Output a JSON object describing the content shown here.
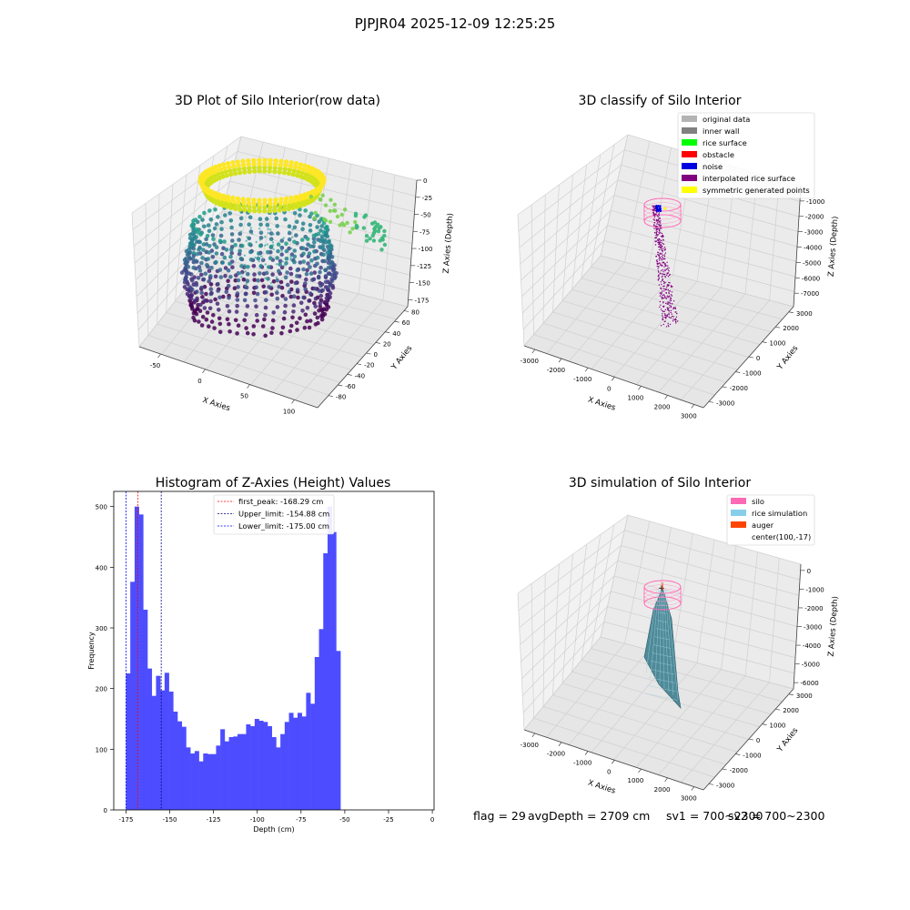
{
  "figure": {
    "suptitle": "PJPJR04 2025-12-09 12:25:25"
  },
  "status": {
    "flag": "flag = 29",
    "avg_depth": "avgDepth = 2709 cm",
    "sv1": "sv1 = 700~2300",
    "sv2": "sv2 = 700~2300"
  },
  "chart_data": [
    {
      "type": "scatter",
      "title": "3D Plot of Silo Interior(row data)",
      "xlabel": "X Axies",
      "ylabel": "Y Axies",
      "zlabel": "Z Axies (Depth)",
      "x_ticks": [
        "-50",
        "0",
        "50",
        "100"
      ],
      "y_ticks": [
        "-80",
        "-60",
        "-40",
        "-20",
        "0",
        "20",
        "40",
        "60",
        "80"
      ],
      "z_ticks": [
        "0",
        "-25",
        "-50",
        "-75",
        "-100",
        "-125",
        "-150",
        "-175"
      ],
      "xlim": [
        -90,
        130
      ],
      "ylim": [
        -85,
        85
      ],
      "zlim": [
        -190,
        0
      ],
      "colormap": "viridis",
      "colors": {
        "low": "#440154",
        "mid": "#21918c",
        "high": "#fde725"
      }
    },
    {
      "type": "scatter",
      "title": "3D classify of Silo Interior",
      "x_ticks": [
        "-3000",
        "-2000",
        "-1000",
        "0",
        "1000",
        "2000",
        "3000"
      ],
      "y_ticks": [
        "-3000",
        "-2000",
        "-1000",
        "0",
        "1000",
        "2000",
        "3000"
      ],
      "z_ticks": [
        "-1000",
        "-2000",
        "-3000",
        "-4000",
        "-5000",
        "-6000",
        "-7000"
      ],
      "xlabel": "X Axies",
      "ylabel": "Y Axies",
      "zlabel": "Z Axies (Depth)",
      "legend_position": "top-right",
      "legend": [
        {
          "label": "original data",
          "color": "#b3b3b3"
        },
        {
          "label": "inner wall",
          "color": "#808080"
        },
        {
          "label": "rice surface",
          "color": "#00ff00"
        },
        {
          "label": "obstacle",
          "color": "#ff0000"
        },
        {
          "label": "noise",
          "color": "#0000e0"
        },
        {
          "label": "interpolated rice surface",
          "color": "#800080"
        },
        {
          "label": "symmetric generated points",
          "color": "#ffff00"
        }
      ]
    },
    {
      "type": "bar",
      "title": "Histogram of Z-Axies (Height) Values",
      "xlabel": "Depth (cm)",
      "ylabel": "Frequency",
      "xlim": [
        -182,
        1
      ],
      "ylim": [
        0,
        525
      ],
      "x_ticks": [
        -175,
        -150,
        -125,
        -100,
        -75,
        -50,
        -25,
        0
      ],
      "y_ticks": [
        0,
        100,
        200,
        300,
        400,
        500
      ],
      "bar_color": "#4d4dff",
      "bin_start": -175,
      "bin_width": 2.45,
      "values": [
        225,
        376,
        500,
        487,
        330,
        233,
        188,
        221,
        197,
        226,
        195,
        162,
        146,
        137,
        103,
        93,
        97,
        80,
        93,
        92,
        92,
        106,
        133,
        113,
        120,
        121,
        125,
        125,
        141,
        138,
        150,
        147,
        145,
        138,
        120,
        103,
        125,
        145,
        160,
        152,
        160,
        154,
        193,
        175,
        252,
        298,
        423,
        500,
        458,
        262
      ],
      "vlines": [
        {
          "label": "first_peak: -168.29 cm",
          "x": -168.29,
          "color": "#ff0000"
        },
        {
          "label": "Upper_limit: -154.88 cm",
          "x": -154.88,
          "color": "#00008b"
        },
        {
          "label": "Lower_limit: -175.00 cm",
          "x": -175.0,
          "color": "#0000ff"
        }
      ],
      "legend_position": "top-center"
    },
    {
      "type": "area",
      "title": "3D simulation of Silo Interior",
      "xlabel": "X Axies",
      "ylabel": "Y Axies",
      "zlabel": "Z Axies (Depth)",
      "x_ticks": [
        "-3000",
        "-2000",
        "-1000",
        "0",
        "1000",
        "2000",
        "3000"
      ],
      "y_ticks": [
        "-3000",
        "-2000",
        "-1000",
        "0",
        "1000",
        "2000",
        "3000"
      ],
      "z_ticks": [
        "0",
        "-1000",
        "-2000",
        "-3000",
        "-4000",
        "-5000",
        "-6000"
      ],
      "legend_position": "top-right",
      "legend": [
        {
          "label": "silo",
          "color": "#ff69b4"
        },
        {
          "label": "rice simulation",
          "color": "#87ceeb"
        },
        {
          "label": "auger",
          "color": "#ff4500"
        },
        {
          "label": "center(100,-17)",
          "color": ""
        }
      ]
    }
  ]
}
